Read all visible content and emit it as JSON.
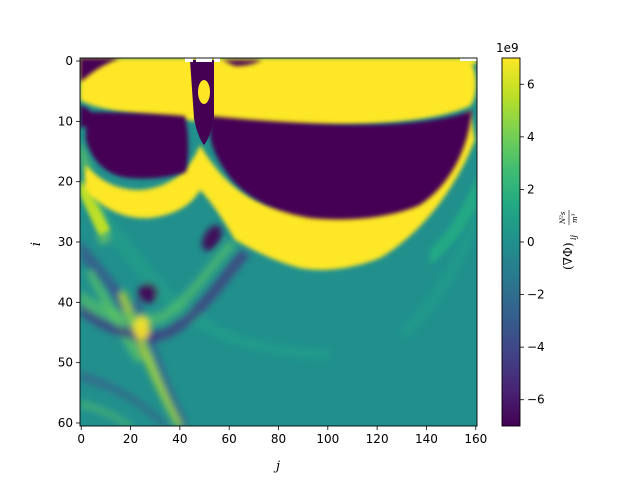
{
  "chart_data": {
    "type": "heatmap",
    "title": "",
    "xlabel": "j",
    "ylabel": "i",
    "x_range": [
      0,
      161
    ],
    "y_range": [
      0,
      61
    ],
    "y_inverted": true,
    "x_ticks": [
      0,
      20,
      40,
      60,
      80,
      100,
      120,
      140,
      160
    ],
    "y_ticks": [
      0,
      10,
      20,
      30,
      40,
      50,
      60
    ],
    "colormap": "viridis",
    "colorbar": {
      "label_main": "(∇Φ)",
      "label_sub": "ij",
      "label_num": "N²s",
      "label_den": "m³",
      "range": [
        -7,
        7
      ],
      "ticks": [
        -6,
        -4,
        -2,
        0,
        2,
        4,
        6
      ],
      "tick_labels": [
        "−6",
        "−4",
        "−2",
        "0",
        "2",
        "4",
        "6"
      ],
      "offset_text": "1e9"
    },
    "colors": {
      "viridis_low": "#440154",
      "viridis_mid": "#21908d",
      "viridis_high": "#fde725",
      "masked": "#ffffff"
    }
  }
}
